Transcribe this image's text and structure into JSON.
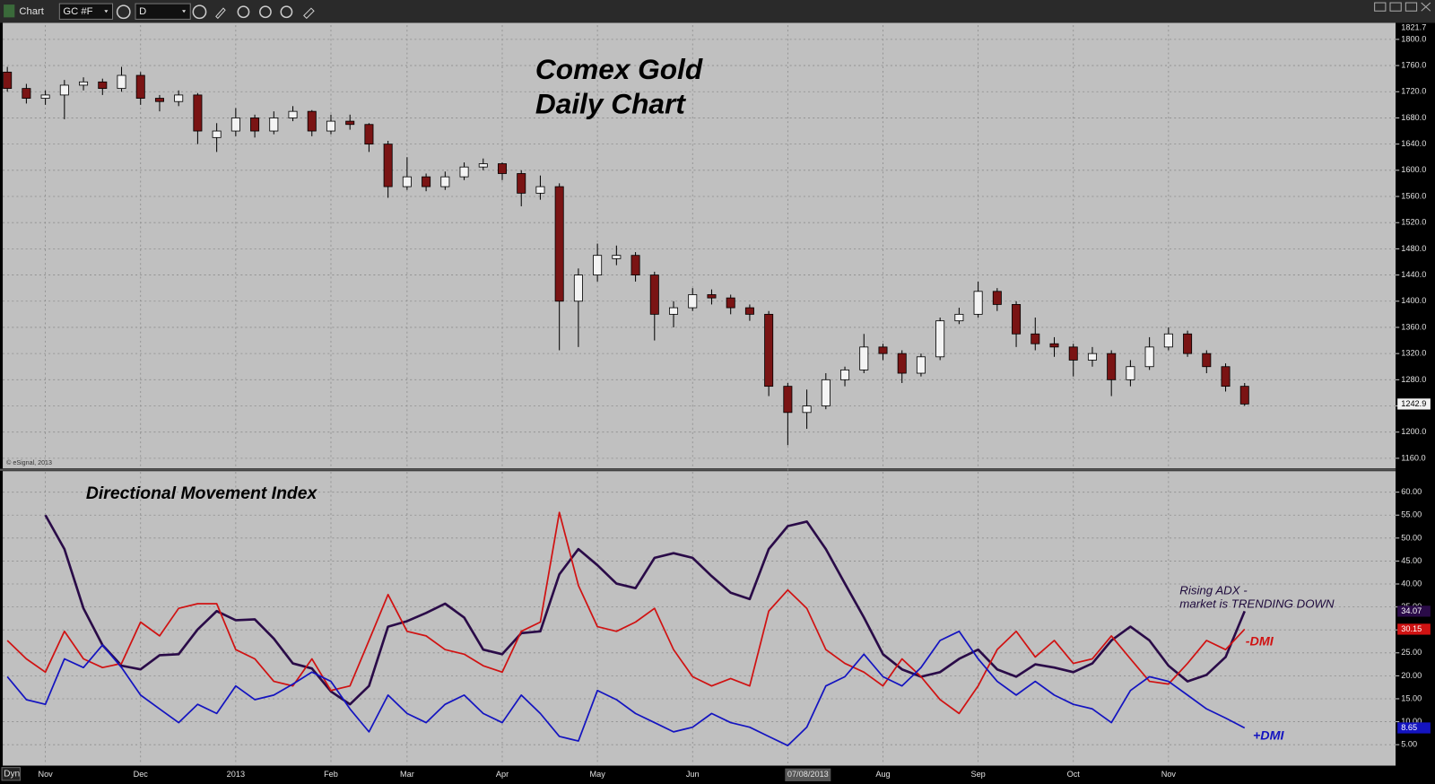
{
  "toolbar": {
    "title": "Chart",
    "symbol": "GC #F",
    "interval": "D"
  },
  "footer": {
    "mode": "Dyn"
  },
  "chart_data": [
    {
      "type": "candlestick",
      "title": "Comex Gold",
      "subtitle": "Daily Chart",
      "annotations": [
        "© eSignal, 2013"
      ],
      "cursor_label": "07/08/2013",
      "up_color": "#f4f4f4",
      "down_color": "#7a1414",
      "grid": true,
      "categories": [
        null,
        null,
        "Nov",
        null,
        null,
        null,
        null,
        "Dec",
        null,
        null,
        null,
        null,
        "2013",
        null,
        null,
        null,
        null,
        "Feb",
        null,
        null,
        null,
        "Mar",
        null,
        null,
        null,
        null,
        "Apr",
        null,
        null,
        null,
        null,
        "May",
        null,
        null,
        null,
        null,
        "Jun",
        null,
        null,
        null,
        null,
        null,
        null,
        null,
        null,
        null,
        "Aug",
        null,
        null,
        null,
        null,
        "Sep",
        null,
        null,
        null,
        null,
        "Oct",
        null,
        null,
        null,
        null,
        "Nov",
        null,
        null,
        null,
        null
      ],
      "open": [
        1750,
        1725,
        1710,
        1715,
        1730,
        1735,
        1725,
        1745,
        1710,
        1705,
        1715,
        1650,
        1660,
        1680,
        1660,
        1680,
        1690,
        1660,
        1675,
        1670,
        1640,
        1575,
        1590,
        1575,
        1590,
        1605,
        1610,
        1595,
        1565,
        1575,
        1400,
        1440,
        1465,
        1470,
        1440,
        1380,
        1390,
        1410,
        1405,
        1390,
        1380,
        1270,
        1230,
        1240,
        1280,
        1295,
        1330,
        1320,
        1290,
        1315,
        1370,
        1380,
        1415,
        1395,
        1350,
        1335,
        1330,
        1310,
        1320,
        1280,
        1300,
        1330,
        1350,
        1320,
        1300,
        1270
      ],
      "high": [
        1758,
        1732,
        1722,
        1738,
        1742,
        1740,
        1758,
        1750,
        1715,
        1722,
        1718,
        1672,
        1695,
        1685,
        1690,
        1698,
        1692,
        1685,
        1685,
        1672,
        1645,
        1620,
        1595,
        1598,
        1612,
        1618,
        1612,
        1600,
        1592,
        1580,
        1450,
        1488,
        1485,
        1475,
        1445,
        1400,
        1420,
        1418,
        1410,
        1395,
        1385,
        1275,
        1265,
        1290,
        1300,
        1350,
        1335,
        1325,
        1320,
        1375,
        1390,
        1430,
        1420,
        1400,
        1375,
        1345,
        1335,
        1330,
        1325,
        1310,
        1345,
        1360,
        1355,
        1325,
        1305,
        1275
      ],
      "low": [
        1720,
        1702,
        1700,
        1678,
        1722,
        1715,
        1720,
        1700,
        1690,
        1698,
        1640,
        1628,
        1652,
        1650,
        1655,
        1675,
        1652,
        1655,
        1662,
        1628,
        1558,
        1570,
        1568,
        1570,
        1585,
        1600,
        1585,
        1545,
        1555,
        1325,
        1330,
        1430,
        1455,
        1430,
        1340,
        1360,
        1385,
        1395,
        1380,
        1370,
        1255,
        1180,
        1205,
        1235,
        1270,
        1290,
        1310,
        1275,
        1285,
        1310,
        1365,
        1375,
        1385,
        1330,
        1325,
        1315,
        1285,
        1300,
        1255,
        1270,
        1295,
        1325,
        1315,
        1290,
        1262,
        1240
      ],
      "close": [
        1725,
        1710,
        1715,
        1730,
        1735,
        1725,
        1745,
        1710,
        1705,
        1715,
        1660,
        1660,
        1680,
        1660,
        1680,
        1690,
        1660,
        1675,
        1670,
        1640,
        1575,
        1590,
        1575,
        1590,
        1605,
        1610,
        1595,
        1565,
        1575,
        1400,
        1440,
        1470,
        1470,
        1440,
        1380,
        1390,
        1410,
        1405,
        1390,
        1380,
        1270,
        1230,
        1240,
        1280,
        1295,
        1330,
        1320,
        1290,
        1315,
        1370,
        1380,
        1415,
        1395,
        1350,
        1335,
        1330,
        1310,
        1320,
        1280,
        1300,
        1330,
        1350,
        1320,
        1300,
        1270,
        1242.9
      ],
      "ylim": [
        1145,
        1821.7
      ],
      "yticks": [
        {
          "value": 1160,
          "label": "1160.0"
        },
        {
          "value": 1200,
          "label": "1200.0"
        },
        {
          "value": 1240,
          "label": "1240.0"
        },
        {
          "value": 1280,
          "label": "1280.0"
        },
        {
          "value": 1320,
          "label": "1320.0"
        },
        {
          "value": 1360,
          "label": "1360.0"
        },
        {
          "value": 1400,
          "label": "1400.0"
        },
        {
          "value": 1440,
          "label": "1440.0"
        },
        {
          "value": 1480,
          "label": "1480.0"
        },
        {
          "value": 1520,
          "label": "1520.0"
        },
        {
          "value": 1560,
          "label": "1560.0"
        },
        {
          "value": 1600,
          "label": "1600.0"
        },
        {
          "value": 1640,
          "label": "1640.0"
        },
        {
          "value": 1680,
          "label": "1680.0"
        },
        {
          "value": 1720,
          "label": "1720.0"
        },
        {
          "value": 1760,
          "label": "1760.0"
        },
        {
          "value": 1800,
          "label": "1800.0"
        }
      ]
    },
    {
      "type": "line",
      "title": "Directional Movement Index",
      "annotations": [
        "Rising ADX -",
        "market is TRENDING DOWN"
      ],
      "grid": true,
      "series": [
        {
          "color": "#2a0b48",
          "values": [
            null,
            null,
            55.0,
            47.6,
            34.7,
            26.7,
            22.2,
            21.4,
            24.5,
            24.7,
            30.1,
            34.1,
            32.1,
            32.3,
            28.1,
            22.7,
            21.6,
            16.6,
            13.8,
            17.8,
            30.7,
            31.9,
            33.7,
            35.7,
            32.7,
            25.7,
            24.7,
            29.3,
            29.7,
            42.1,
            47.6,
            44.1,
            40.1,
            39.1,
            45.7,
            46.7,
            45.7,
            41.7,
            38.1,
            36.7,
            47.6,
            52.6,
            53.6,
            47.6,
            40.1,
            32.7,
            24.7,
            21.4,
            19.8,
            20.8,
            23.7,
            25.7,
            21.4,
            19.8,
            22.5,
            21.8,
            20.8,
            22.7,
            27.7,
            30.7,
            27.7,
            22.2,
            18.8,
            20.2,
            24.1,
            34.07
          ]
        },
        {
          "name": "-DMI",
          "color": "#d01212",
          "values": [
            27.7,
            23.7,
            20.8,
            29.7,
            23.7,
            21.8,
            22.7,
            31.7,
            28.7,
            34.7,
            35.7,
            35.7,
            25.7,
            23.7,
            18.8,
            17.8,
            23.7,
            16.8,
            17.8,
            27.7,
            37.7,
            29.7,
            28.7,
            25.7,
            24.7,
            22.2,
            20.8,
            29.7,
            31.7,
            55.6,
            39.7,
            30.7,
            29.7,
            31.7,
            34.7,
            25.7,
            19.8,
            17.8,
            19.4,
            17.8,
            34.1,
            38.7,
            34.7,
            25.7,
            22.7,
            20.8,
            17.8,
            23.7,
            19.8,
            14.8,
            11.8,
            17.8,
            25.7,
            29.7,
            24.1,
            27.7,
            22.7,
            23.7,
            28.7,
            23.7,
            18.8,
            18.2,
            22.7,
            27.7,
            25.7,
            30.15
          ]
        },
        {
          "name": "+DMI",
          "color": "#1414c0",
          "values": [
            19.8,
            14.8,
            13.8,
            23.7,
            21.8,
            26.7,
            21.8,
            15.8,
            12.8,
            9.8,
            13.8,
            11.8,
            17.8,
            14.8,
            15.8,
            18.2,
            20.8,
            18.8,
            12.8,
            7.8,
            15.8,
            11.8,
            9.8,
            13.8,
            15.8,
            11.8,
            9.8,
            15.8,
            11.8,
            6.8,
            5.8,
            16.8,
            14.8,
            11.8,
            9.8,
            7.8,
            8.8,
            11.8,
            9.8,
            8.8,
            6.8,
            4.8,
            8.8,
            17.8,
            19.8,
            24.7,
            19.8,
            17.8,
            21.8,
            27.7,
            29.7,
            23.7,
            18.8,
            15.8,
            18.8,
            15.8,
            13.8,
            12.8,
            9.8,
            16.8,
            19.8,
            18.8,
            15.8,
            12.8,
            10.8,
            8.65
          ]
        }
      ],
      "ylim": [
        0.6,
        64.4
      ],
      "yticks": [
        {
          "value": 5,
          "label": "5.00"
        },
        {
          "value": 10,
          "label": "10.00"
        },
        {
          "value": 15,
          "label": "15.00"
        },
        {
          "value": 20,
          "label": "20.00"
        },
        {
          "value": 25,
          "label": "25.00"
        },
        {
          "value": 30,
          "label": "30.00"
        },
        {
          "value": 35,
          "label": "35.00"
        },
        {
          "value": 40,
          "label": "40.00"
        },
        {
          "value": 45,
          "label": "45.00"
        },
        {
          "value": 50,
          "label": "50.00"
        },
        {
          "value": 55,
          "label": "55.00"
        },
        {
          "value": 60,
          "label": "60.00"
        }
      ]
    }
  ]
}
